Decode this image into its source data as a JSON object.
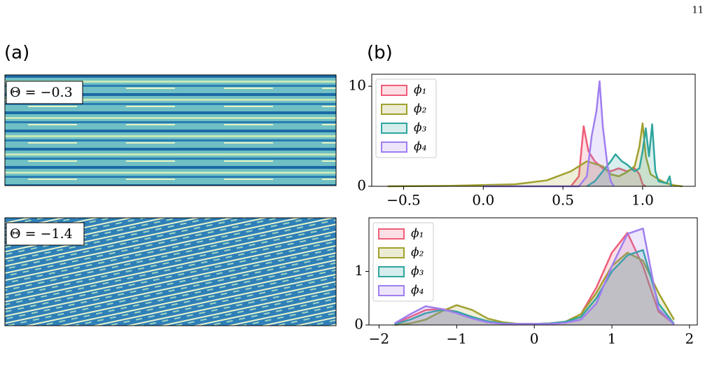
{
  "page_number": "11",
  "panels": [
    {
      "label": "(a)",
      "images": [
        "Θ = −0.3",
        "Θ = −1.4"
      ]
    },
    {
      "label": "(b)"
    }
  ],
  "chart_data": [
    {
      "type": "line",
      "xlim": [
        -0.7,
        1.33
      ],
      "ylim": [
        0,
        11.2
      ],
      "xticks": [
        {
          "value": -0.5,
          "label": "−0.5"
        },
        {
          "value": 0,
          "label": "0.0"
        },
        {
          "value": 0.5,
          "label": "0.5"
        },
        {
          "value": 1,
          "label": "1.0"
        }
      ],
      "yticks": [
        0,
        10
      ],
      "series": [
        {
          "name": "ϕ₁",
          "color": "#ef5d78",
          "x": [
            0.55,
            0.6,
            0.63,
            0.66,
            0.7,
            0.75,
            0.8,
            0.85,
            0.9,
            0.95,
            0.98,
            1.0,
            1.02
          ],
          "values": [
            0,
            1,
            6,
            3.5,
            2.5,
            1.8,
            1.5,
            1.8,
            1.5,
            1.8,
            1.2,
            0.2,
            0
          ]
        },
        {
          "name": "ϕ₂",
          "color": "#a0a02e",
          "x": [
            -0.6,
            -0.2,
            0.2,
            0.4,
            0.55,
            0.65,
            0.75,
            0.8,
            0.85,
            0.9,
            0.95,
            0.98,
            1.0,
            1.02,
            1.05,
            1.1,
            1.15,
            1.2,
            1.25
          ],
          "values": [
            0,
            0.05,
            0.2,
            0.6,
            1.5,
            2.5,
            2,
            1.2,
            1,
            1.4,
            2,
            4,
            6.3,
            3,
            1.2,
            0.7,
            0.3,
            0.1,
            0
          ]
        },
        {
          "name": "ϕ₃",
          "color": "#2fa59e",
          "x": [
            0.65,
            0.7,
            0.75,
            0.8,
            0.83,
            0.87,
            0.9,
            0.95,
            0.98,
            1.0,
            1.02,
            1.04,
            1.06,
            1.08,
            1.1,
            1.15,
            1.17,
            1.18
          ],
          "values": [
            0,
            0.5,
            1.5,
            2.5,
            3.2,
            2.5,
            2.2,
            1.5,
            1.8,
            3.5,
            5.8,
            3,
            6.2,
            1.5,
            0.5,
            0.3,
            1,
            0
          ]
        },
        {
          "name": "ϕ₄",
          "color": "#a07ef0",
          "x": [
            0,
            0.6,
            0.65,
            0.68,
            0.71,
            0.73,
            0.75,
            0.78,
            0.8,
            0.82
          ],
          "values": [
            0,
            0,
            1,
            5,
            7.5,
            10.5,
            6,
            2,
            0.5,
            0
          ]
        }
      ]
    },
    {
      "type": "line",
      "xlim": [
        -2.13,
        2.1
      ],
      "ylim": [
        0,
        2
      ],
      "xticks": [
        {
          "value": -2,
          "label": "−2"
        },
        {
          "value": -1,
          "label": "−1"
        },
        0,
        1,
        2
      ],
      "yticks": [
        0,
        1
      ],
      "series": [
        {
          "name": "ϕ₁",
          "color": "#ef5d78",
          "x": [
            -1.8,
            -1.6,
            -1.4,
            -1.2,
            -1,
            -0.8,
            -0.6,
            -0.4,
            -0.2,
            0,
            0.2,
            0.4,
            0.6,
            0.8,
            1,
            1.2,
            1.4,
            1.6,
            1.8
          ],
          "values": [
            0.02,
            0.15,
            0.28,
            0.3,
            0.25,
            0.15,
            0.07,
            0.03,
            0.02,
            0.02,
            0.03,
            0.06,
            0.2,
            0.7,
            1.35,
            1.72,
            1.1,
            0.25,
            0.02
          ]
        },
        {
          "name": "ϕ₂",
          "color": "#a0a02e",
          "x": [
            -1.8,
            -1.6,
            -1.4,
            -1.2,
            -1,
            -0.8,
            -0.6,
            -0.4,
            -0.2,
            0,
            0.2,
            0.4,
            0.6,
            0.8,
            1,
            1.2,
            1.4,
            1.6,
            1.8
          ],
          "values": [
            0,
            0.03,
            0.1,
            0.25,
            0.37,
            0.28,
            0.12,
            0.05,
            0.02,
            0.02,
            0.03,
            0.06,
            0.2,
            0.6,
            1.1,
            1.35,
            1.2,
            0.6,
            0.1
          ]
        },
        {
          "name": "ϕ₃",
          "color": "#2fa59e",
          "x": [
            -1.8,
            -1.6,
            -1.4,
            -1.2,
            -1,
            -0.8,
            -0.6,
            -0.4,
            -0.2,
            0,
            0.2,
            0.4,
            0.6,
            0.8,
            1,
            1.2,
            1.4,
            1.6,
            1.8
          ],
          "values": [
            0.01,
            0.1,
            0.22,
            0.28,
            0.25,
            0.15,
            0.07,
            0.03,
            0.02,
            0.02,
            0.03,
            0.06,
            0.15,
            0.5,
            1,
            1.3,
            1.4,
            0.4,
            0.02
          ]
        },
        {
          "name": "ϕ₄",
          "color": "#a07ef0",
          "x": [
            -1.8,
            -1.6,
            -1.4,
            -1.2,
            -1,
            -0.8,
            -0.6,
            -0.4,
            -0.2,
            0,
            0.2,
            0.4,
            0.6,
            0.8,
            1,
            1.2,
            1.4,
            1.6,
            1.8
          ],
          "values": [
            0.03,
            0.2,
            0.35,
            0.3,
            0.22,
            0.12,
            0.05,
            0.02,
            0.02,
            0.02,
            0.02,
            0.04,
            0.1,
            0.4,
            1.1,
            1.7,
            1.8,
            0.3,
            0.01
          ]
        }
      ]
    }
  ]
}
